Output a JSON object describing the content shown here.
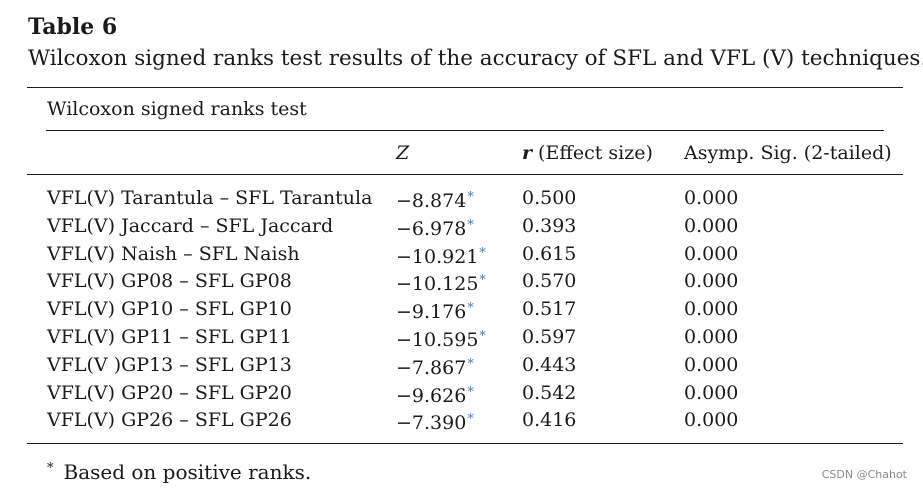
{
  "table": {
    "label": "Table 6",
    "caption": "Wilcoxon signed ranks test results of the accuracy of SFL and VFL (V) techniques.",
    "group_header": "Wilcoxon signed ranks test",
    "columns": {
      "comparison": "",
      "z": "Z",
      "r_symbol": "r",
      "r_rest": " (Effect size)",
      "sig": "Asymp. Sig. (2-tailed)"
    },
    "rows": [
      {
        "comparison": "VFL(V) Tarantula – SFL Tarantula",
        "z": "−8.874",
        "r": "0.500",
        "sig": "0.000"
      },
      {
        "comparison": "VFL(V) Jaccard – SFL Jaccard",
        "z": "−6.978",
        "r": "0.393",
        "sig": "0.000"
      },
      {
        "comparison": "VFL(V) Naish – SFL Naish",
        "z": "−10.921",
        "r": "0.615",
        "sig": "0.000"
      },
      {
        "comparison": "VFL(V) GP08 – SFL GP08",
        "z": "−10.125",
        "r": "0.570",
        "sig": "0.000"
      },
      {
        "comparison": "VFL(V) GP10 – SFL GP10",
        "z": "−9.176",
        "r": "0.517",
        "sig": "0.000"
      },
      {
        "comparison": "VFL(V) GP11 – SFL GP11",
        "z": "−10.595",
        "r": "0.597",
        "sig": "0.000"
      },
      {
        "comparison": "VFL(V )GP13 – SFL GP13",
        "z": "−7.867",
        "r": "0.443",
        "sig": "0.000"
      },
      {
        "comparison": "VFL(V) GP20 – SFL GP20",
        "z": "−9.626",
        "r": "0.542",
        "sig": "0.000"
      },
      {
        "comparison": "VFL(V) GP26 – SFL GP26",
        "z": "−7.390",
        "r": "0.416",
        "sig": "0.000"
      }
    ],
    "significance_marker": "*",
    "footnote": {
      "marker": "*",
      "text": "Based on positive ranks."
    }
  },
  "watermark": "CSDN @Chahot",
  "colors": {
    "text": "#1a1a1a",
    "marker": "#4a7fb8",
    "watermark": "#8a8a8a"
  }
}
